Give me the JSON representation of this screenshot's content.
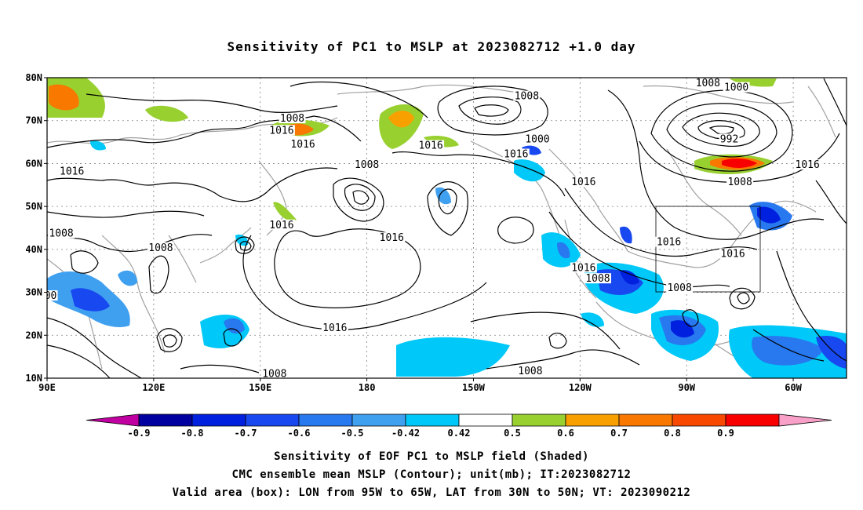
{
  "title": "Sensitivity of PC1 to MSLP at 2023082712 +1.0 day",
  "lat_labels": [
    "80N",
    "70N",
    "60N",
    "50N",
    "40N",
    "30N",
    "20N",
    "10N"
  ],
  "lon_labels": [
    "90E",
    "120E",
    "150E",
    "180",
    "150W",
    "120W",
    "90W",
    "60W"
  ],
  "contour_labels": [
    {
      "text": "1008",
      "lon": 159,
      "lat": 70.3
    },
    {
      "text": "1008",
      "lon": 225,
      "lat": 75.5
    },
    {
      "text": "1000",
      "lon": 228,
      "lat": 65.5
    },
    {
      "text": "1016",
      "lon": 162,
      "lat": 64.3
    },
    {
      "text": "1016",
      "lon": 97,
      "lat": 58
    },
    {
      "text": "1016",
      "lon": 198,
      "lat": 64
    },
    {
      "text": "1016",
      "lon": 222,
      "lat": 62
    },
    {
      "text": "1008",
      "lon": 180,
      "lat": 59.5
    },
    {
      "text": "1016",
      "lon": 156,
      "lat": 67.5
    },
    {
      "text": "1008",
      "lon": 94,
      "lat": 43.5
    },
    {
      "text": "1008",
      "lon": 122,
      "lat": 40.2
    },
    {
      "text": "1016",
      "lon": 156,
      "lat": 45.5
    },
    {
      "text": "1016",
      "lon": 187,
      "lat": 42.5
    },
    {
      "text": "1016",
      "lon": 241,
      "lat": 55.5
    },
    {
      "text": "1016",
      "lon": 241,
      "lat": 35.5
    },
    {
      "text": "1008",
      "lon": 245,
      "lat": 33
    },
    {
      "text": "1016",
      "lon": 265,
      "lat": 41.5
    },
    {
      "text": "1016",
      "lon": 283,
      "lat": 38.8
    },
    {
      "text": "1008",
      "lon": 268,
      "lat": 30.8
    },
    {
      "text": "1016",
      "lon": 171,
      "lat": 21.5
    },
    {
      "text": "1008",
      "lon": 154,
      "lat": 10.8
    },
    {
      "text": "1008",
      "lon": 226,
      "lat": 11.5
    },
    {
      "text": "1000",
      "lon": 284,
      "lat": 77.5
    },
    {
      "text": "992",
      "lon": 282,
      "lat": 65.5
    },
    {
      "text": "1008",
      "lon": 285,
      "lat": 55.5
    },
    {
      "text": "1016",
      "lon": 304,
      "lat": 59.5
    },
    {
      "text": "1008",
      "lon": 276,
      "lat": 78.5
    },
    {
      "text": "00",
      "lon": 91,
      "lat": 29
    }
  ],
  "colorbar": {
    "colors": [
      "#c000a0",
      "#0000a0",
      "#0020e0",
      "#1848f0",
      "#2878f0",
      "#40a0f0",
      "#00c8f8",
      "#ffffff",
      "#98d030",
      "#f8a000",
      "#f87800",
      "#f84800",
      "#f80000",
      "#f8a0c8"
    ],
    "labels": [
      "-0.9",
      "-0.8",
      "-0.7",
      "-0.6",
      "-0.5",
      "-0.42",
      "0.42",
      "0.5",
      "0.6",
      "0.7",
      "0.8",
      "0.9"
    ]
  },
  "captions": {
    "line1": "Sensitivity of EOF PC1 to MSLP field (Shaded)",
    "line2": "CMC ensemble mean MSLP (Contour); unit(mb); IT:2023082712",
    "line3": "Valid area (box): LON from 95W to 65W, LAT from 30N to 50N; VT: 2023090212"
  }
}
